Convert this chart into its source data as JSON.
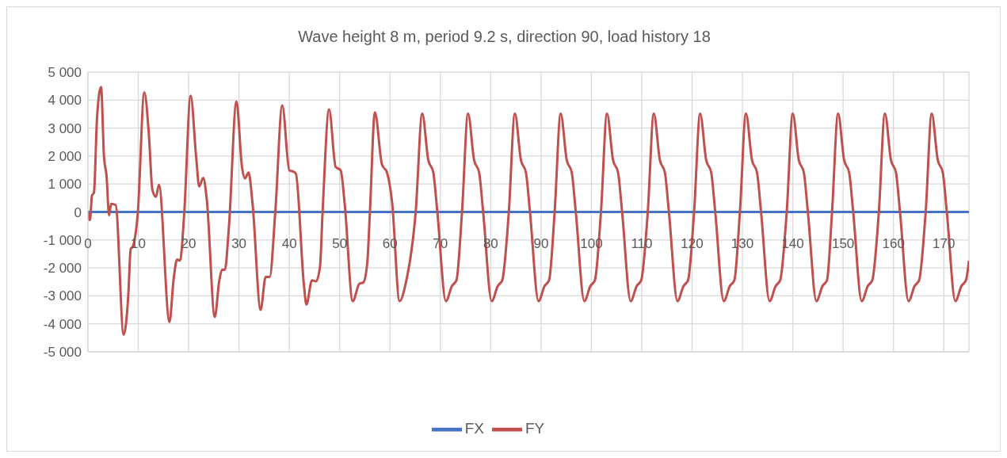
{
  "chart_data": {
    "type": "line",
    "title": "Wave height 8 m, period 9.2 s, direction 90, load history 18",
    "xlim": [
      0,
      175
    ],
    "xticks": [
      0,
      10,
      20,
      30,
      40,
      50,
      60,
      70,
      80,
      90,
      100,
      110,
      120,
      130,
      140,
      150,
      160,
      170
    ],
    "ylim": [
      -5000,
      5000
    ],
    "yticks": [
      {
        "value": -5000,
        "label": "-5 000"
      },
      {
        "value": -4000,
        "label": "-4 000"
      },
      {
        "value": -3000,
        "label": "-3 000"
      },
      {
        "value": -2000,
        "label": "-2 000"
      },
      {
        "value": -1000,
        "label": "-1 000"
      },
      {
        "value": 0,
        "label": "0"
      },
      {
        "value": 1000,
        "label": "1 000"
      },
      {
        "value": 2000,
        "label": "2 000"
      },
      {
        "value": 3000,
        "label": "3 000"
      },
      {
        "value": 4000,
        "label": "4 000"
      },
      {
        "value": 5000,
        "label": "5 000"
      }
    ],
    "grid": true,
    "legend": "bottom",
    "series": [
      {
        "name": "FX",
        "color": "#4472c4",
        "x": [
          0,
          175
        ],
        "values": [
          0,
          0
        ]
      },
      {
        "name": "FY",
        "color": "#c0504d",
        "x": [
          0,
          0.4,
          0.8,
          1.2,
          1.8,
          2.6,
          3.2,
          3.7,
          4.2,
          4.6,
          5.5,
          7.1,
          8.0,
          8.5,
          8.9,
          9.9,
          11.2,
          12.1,
          12.8,
          13.5,
          14.1,
          16.2,
          17.0,
          17.7,
          18.3,
          19.1,
          20.4,
          21.5,
          22.1,
          22.9,
          23.6,
          25.2,
          26.1,
          26.7,
          27.2,
          28.0,
          29.5,
          30.6,
          31.2,
          31.9,
          32.7,
          34.3,
          35.3,
          36.1,
          37.2,
          38.6,
          40.0,
          40.7,
          41.3,
          42.9,
          43.4,
          44.5,
          45.3,
          46.1,
          46.6,
          47.9,
          49.2,
          50.2,
          51.0,
          52.6,
          53.9,
          54.7,
          55.5,
          56.0,
          57.0,
          58.4,
          59.4,
          60.4,
          61.9,
          63.1,
          65.1,
          66.4,
          67.6,
          68.6,
          69.4,
          71.1,
          72.3,
          73.2,
          74.3,
          75.5,
          76.7,
          77.7,
          78.5,
          80.2,
          81.4,
          82.3,
          83.6,
          84.8,
          86.0,
          87.0,
          87.8,
          89.5,
          90.7,
          91.6,
          92.7,
          93.9,
          95.1,
          96.1,
          96.9,
          98.6,
          99.8,
          100.7,
          101.9,
          103.1,
          104.3,
          105.3,
          106.1,
          107.8,
          109.0,
          109.9,
          111.2,
          112.4,
          113.6,
          114.6,
          115.4,
          117.1,
          118.3,
          119.2,
          120.4,
          121.6,
          122.8,
          123.8,
          124.6,
          126.3,
          127.5,
          128.4,
          129.5,
          130.7,
          131.9,
          132.9,
          133.7,
          135.4,
          136.6,
          137.5,
          138.8,
          140.0,
          141.2,
          142.2,
          143.0,
          144.7,
          145.9,
          146.8,
          147.8,
          149.0,
          150.2,
          151.2,
          152.0,
          153.7,
          154.9,
          155.8,
          157.1,
          158.3,
          159.5,
          160.5,
          161.3,
          163.0,
          164.2,
          165.1,
          166.4,
          167.6,
          168.8,
          169.8,
          170.6,
          172.3,
          173.5,
          174.4,
          175
        ],
        "values": [
          0,
          -290,
          580,
          700,
          3350,
          4470,
          1950,
          1280,
          -120,
          290,
          250,
          -4390,
          -3020,
          -1320,
          -1240,
          -40,
          4280,
          2770,
          790,
          540,
          970,
          -3930,
          -2440,
          -1700,
          -1740,
          -120,
          4160,
          1950,
          910,
          1220,
          455,
          -3750,
          -2440,
          -2070,
          -2070,
          -540,
          3950,
          1610,
          1200,
          1410,
          290,
          -3500,
          -2320,
          -2320,
          -40,
          3810,
          1490,
          1450,
          1370,
          -2610,
          -3310,
          -2440,
          -2480,
          -1950,
          -40,
          3670,
          1610,
          1490,
          290,
          -3190,
          -2570,
          -2520,
          -1780,
          -40,
          3560,
          1700,
          1410,
          370,
          -3190,
          -2570,
          0,
          3520,
          1860,
          1410,
          0,
          -3190,
          -2650,
          -2440,
          0,
          3520,
          1860,
          1410,
          0,
          -3190,
          -2650,
          -2440,
          0,
          3520,
          1860,
          1410,
          0,
          -3190,
          -2650,
          -2440,
          0,
          3520,
          1860,
          1410,
          0,
          -3190,
          -2650,
          -2440,
          0,
          3520,
          1860,
          1410,
          0,
          -3190,
          -2650,
          -2440,
          0,
          3520,
          1860,
          1410,
          0,
          -3190,
          -2650,
          -2440,
          0,
          3520,
          1860,
          1410,
          0,
          -3190,
          -2650,
          -2440,
          0,
          3520,
          1860,
          1410,
          0,
          -3190,
          -2650,
          -2440,
          0,
          3520,
          1860,
          1410,
          0,
          -3190,
          -2650,
          -2440,
          0,
          3520,
          1860,
          1410,
          0,
          -3190,
          -2650,
          -2440,
          0,
          3520,
          1860,
          1410,
          0,
          -3190,
          -2650,
          -2440,
          0,
          3520,
          1860,
          1410,
          0,
          -3190,
          -2650,
          -2440,
          -1740
        ]
      }
    ]
  }
}
